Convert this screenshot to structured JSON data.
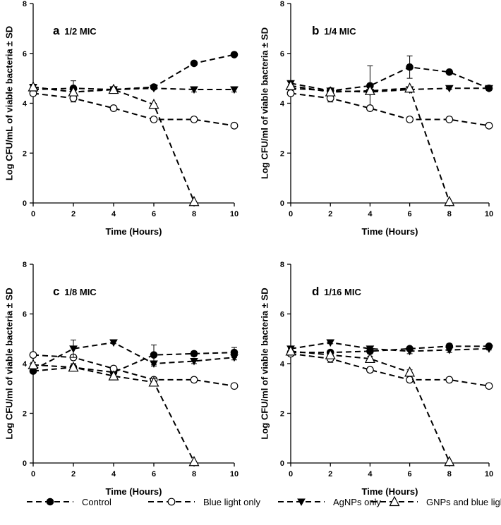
{
  "colors": {
    "ink": "#000000",
    "background": "#ffffff"
  },
  "legend": [
    {
      "name": "Control",
      "marker": "filled-circle"
    },
    {
      "name": "Blue light only",
      "marker": "open-circle"
    },
    {
      "name": "AgNPs only",
      "marker": "filled-triangle-down"
    },
    {
      "name": "GNPs and blue light",
      "marker": "open-triangle-up"
    }
  ],
  "chart_data": [
    {
      "type": "line",
      "panel_letter": "a",
      "title": "1/2 MIC",
      "xlabel": "Time (Hours)",
      "ylabel": "Log CFU/mL of viable bacteria ± SD",
      "xlim": [
        0,
        10
      ],
      "ylim": [
        0,
        8
      ],
      "xticks": [
        0,
        2,
        4,
        6,
        8,
        10
      ],
      "yticks": [
        0,
        2,
        4,
        6,
        8
      ],
      "x": [
        0,
        2,
        4,
        6,
        8,
        10
      ],
      "series": [
        {
          "name": "Control",
          "marker": "filled-circle",
          "values": [
            4.55,
            4.6,
            4.55,
            4.65,
            5.6,
            5.95
          ],
          "errors": [
            0.1,
            0.3,
            0.05,
            0.05,
            0.05,
            0.05
          ]
        },
        {
          "name": "Blue light only",
          "marker": "open-circle",
          "values": [
            4.4,
            4.2,
            3.8,
            3.35,
            3.35,
            3.1
          ],
          "errors": [
            0.1,
            0.15,
            0.1,
            0.1,
            0.1,
            0.05
          ]
        },
        {
          "name": "AgNPs only",
          "marker": "filled-triangle-down",
          "values": [
            4.65,
            4.45,
            4.55,
            4.6,
            4.55,
            4.55
          ],
          "errors": [
            0.05,
            0.05,
            0.05,
            0.05,
            0.1,
            0.1
          ]
        },
        {
          "name": "GNPs and blue light",
          "marker": "open-triangle-up",
          "values": [
            4.65,
            4.45,
            4.55,
            3.95,
            0.05,
            null
          ],
          "errors": [
            0.05,
            0.05,
            0.05,
            0.05,
            0,
            null
          ]
        }
      ]
    },
    {
      "type": "line",
      "panel_letter": "b",
      "title": "1/4 MIC",
      "xlabel": "Time (Hours)",
      "ylabel": "Log CFU/ml of viable bacteria ± SD",
      "xlim": [
        0,
        10
      ],
      "ylim": [
        0,
        8
      ],
      "xticks": [
        0,
        2,
        4,
        6,
        8,
        10
      ],
      "yticks": [
        0,
        2,
        4,
        6,
        8
      ],
      "x": [
        0,
        2,
        4,
        6,
        8,
        10
      ],
      "series": [
        {
          "name": "Control",
          "marker": "filled-circle",
          "values": [
            4.6,
            4.5,
            4.7,
            5.45,
            5.25,
            4.6
          ],
          "errors": [
            0.05,
            0.05,
            0.8,
            0.45,
            0.05,
            0.05
          ]
        },
        {
          "name": "Blue light only",
          "marker": "open-circle",
          "values": [
            4.4,
            4.2,
            3.8,
            3.35,
            3.35,
            3.1
          ],
          "errors": [
            0.1,
            0.15,
            0.1,
            0.1,
            0.1,
            0.05
          ]
        },
        {
          "name": "AgNPs only",
          "marker": "filled-triangle-down",
          "values": [
            4.8,
            4.5,
            4.45,
            4.55,
            4.6,
            4.6
          ],
          "errors": [
            0.05,
            0.05,
            0.1,
            0.05,
            0.05,
            0.05
          ]
        },
        {
          "name": "GNPs and blue light",
          "marker": "open-triangle-up",
          "values": [
            4.7,
            4.45,
            4.5,
            4.6,
            0.05,
            null
          ],
          "errors": [
            0.05,
            0.05,
            0.05,
            0.05,
            0,
            null
          ]
        }
      ]
    },
    {
      "type": "line",
      "panel_letter": "c",
      "title": "1/8 MIC",
      "xlabel": "Time (Hours)",
      "ylabel": "Log CFU/ml of viable bacteria ± SD",
      "xlim": [
        0,
        10
      ],
      "ylim": [
        0,
        8
      ],
      "xticks": [
        0,
        2,
        4,
        6,
        8,
        10
      ],
      "yticks": [
        0,
        2,
        4,
        6,
        8
      ],
      "x": [
        0,
        2,
        4,
        6,
        8,
        10
      ],
      "series": [
        {
          "name": "Control",
          "marker": "filled-circle",
          "values": [
            3.7,
            3.85,
            3.65,
            4.35,
            4.4,
            4.45
          ],
          "errors": [
            0.05,
            0.15,
            0.1,
            0.4,
            0.1,
            0.2
          ]
        },
        {
          "name": "Blue light only",
          "marker": "open-circle",
          "values": [
            4.35,
            4.25,
            3.8,
            3.35,
            3.35,
            3.1
          ],
          "errors": [
            0.05,
            0.1,
            0.1,
            0.1,
            0.1,
            0.05
          ]
        },
        {
          "name": "AgNPs only",
          "marker": "filled-triangle-down",
          "values": [
            3.75,
            4.6,
            4.85,
            4.0,
            4.1,
            4.25
          ],
          "errors": [
            0.05,
            0.35,
            0.05,
            0.1,
            0.1,
            0.1
          ]
        },
        {
          "name": "GNPs and blue light",
          "marker": "open-triangle-up",
          "values": [
            3.95,
            3.85,
            3.5,
            3.25,
            0.05,
            null
          ],
          "errors": [
            0.1,
            0.15,
            0.15,
            0.15,
            0,
            null
          ]
        }
      ]
    },
    {
      "type": "line",
      "panel_letter": "d",
      "title": "1/16 MIC",
      "xlabel": "Time (Hours)",
      "ylabel": "Log CFU/ml of viable bacteria ± SD",
      "xlim": [
        0,
        10
      ],
      "ylim": [
        0,
        8
      ],
      "xticks": [
        0,
        2,
        4,
        6,
        8,
        10
      ],
      "yticks": [
        0,
        2,
        4,
        6,
        8
      ],
      "x": [
        0,
        2,
        4,
        6,
        8,
        10
      ],
      "series": [
        {
          "name": "Control",
          "marker": "filled-circle",
          "values": [
            4.45,
            4.45,
            4.5,
            4.6,
            4.7,
            4.7
          ],
          "errors": [
            0.05,
            0.05,
            0.1,
            0.05,
            0.1,
            0.05
          ]
        },
        {
          "name": "Blue light only",
          "marker": "open-circle",
          "values": [
            4.4,
            4.2,
            3.75,
            3.35,
            3.35,
            3.1
          ],
          "errors": [
            0.1,
            0.15,
            0.1,
            0.1,
            0.1,
            0.05
          ]
        },
        {
          "name": "AgNPs only",
          "marker": "filled-triangle-down",
          "values": [
            4.6,
            4.85,
            4.6,
            4.5,
            4.55,
            4.6
          ],
          "errors": [
            0.05,
            0.05,
            0.1,
            0.1,
            0.1,
            0.05
          ]
        },
        {
          "name": "GNPs and blue light",
          "marker": "open-triangle-up",
          "values": [
            4.5,
            4.35,
            4.2,
            3.65,
            0.05,
            null
          ],
          "errors": [
            0.1,
            0.1,
            0.1,
            0.1,
            0,
            null
          ]
        }
      ]
    }
  ]
}
